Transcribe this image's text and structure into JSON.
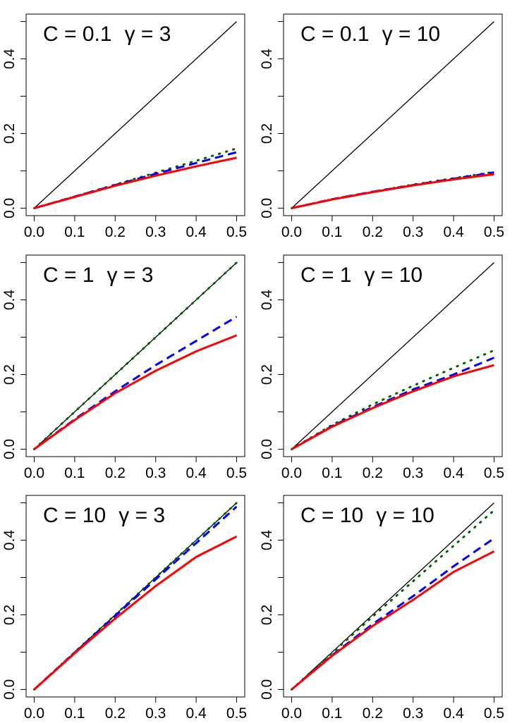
{
  "chart_data": [
    {
      "type": "line",
      "title": "C = 0.1  γ = 3",
      "title_parts": {
        "c_label": "C = 0.1",
        "gamma_label": "γ = 3"
      },
      "xlim": [
        0,
        0.5
      ],
      "ylim": [
        0,
        0.5
      ],
      "x_ticks": [
        "0.0",
        "0.1",
        "0.2",
        "0.3",
        "0.4",
        "0.5"
      ],
      "y_ticks": [
        "0.0",
        "0.2",
        "0.4"
      ],
      "series": [
        {
          "style": "solid-thin",
          "color": "#000000",
          "x": [
            0,
            0.5
          ],
          "y": [
            0,
            0.5
          ]
        },
        {
          "style": "dotted",
          "color": "#006400",
          "x": [
            0,
            0.1,
            0.2,
            0.3,
            0.4,
            0.5
          ],
          "y": [
            0,
            0.031,
            0.063,
            0.095,
            0.127,
            0.16
          ]
        },
        {
          "style": "dashed",
          "color": "#0000ff",
          "x": [
            0,
            0.1,
            0.2,
            0.3,
            0.4,
            0.5
          ],
          "y": [
            0,
            0.031,
            0.062,
            0.092,
            0.121,
            0.15
          ]
        },
        {
          "style": "solid",
          "color": "#ff0000",
          "x": [
            0,
            0.1,
            0.2,
            0.3,
            0.4,
            0.5
          ],
          "y": [
            0,
            0.03,
            0.06,
            0.087,
            0.112,
            0.135
          ]
        }
      ]
    },
    {
      "type": "line",
      "title": "C = 0.1  γ = 10",
      "title_parts": {
        "c_label": "C = 0.1",
        "gamma_label": "γ = 10"
      },
      "xlim": [
        0,
        0.5
      ],
      "ylim": [
        0,
        0.5
      ],
      "x_ticks": [
        "0.0",
        "0.1",
        "0.2",
        "0.3",
        "0.4",
        "0.5"
      ],
      "y_ticks": [
        "0.0",
        "0.2",
        "0.4"
      ],
      "series": [
        {
          "style": "solid-thin",
          "color": "#000000",
          "x": [
            0,
            0.5
          ],
          "y": [
            0,
            0.5
          ]
        },
        {
          "style": "dotted",
          "color": "#006400",
          "x": [
            0,
            0.1,
            0.2,
            0.3,
            0.4,
            0.5
          ],
          "y": [
            0,
            0.024,
            0.044,
            0.063,
            0.08,
            0.097
          ]
        },
        {
          "style": "dashed",
          "color": "#0000ff",
          "x": [
            0,
            0.1,
            0.2,
            0.3,
            0.4,
            0.5
          ],
          "y": [
            0,
            0.024,
            0.044,
            0.062,
            0.079,
            0.096
          ]
        },
        {
          "style": "solid",
          "color": "#ff0000",
          "x": [
            0,
            0.1,
            0.2,
            0.3,
            0.4,
            0.5
          ],
          "y": [
            0,
            0.023,
            0.043,
            0.061,
            0.077,
            0.091
          ]
        }
      ]
    },
    {
      "type": "line",
      "title": "C = 1  γ = 3",
      "title_parts": {
        "c_label": "C = 1",
        "gamma_label": "γ = 3"
      },
      "xlim": [
        0,
        0.5
      ],
      "ylim": [
        0,
        0.5
      ],
      "x_ticks": [
        "0.0",
        "0.1",
        "0.2",
        "0.3",
        "0.4",
        "0.5"
      ],
      "y_ticks": [
        "0.0",
        "0.2",
        "0.4"
      ],
      "series": [
        {
          "style": "solid-thin",
          "color": "#000000",
          "x": [
            0,
            0.5
          ],
          "y": [
            0,
            0.5
          ]
        },
        {
          "style": "dotted",
          "color": "#006400",
          "x": [
            0,
            0.1,
            0.2,
            0.3,
            0.4,
            0.5
          ],
          "y": [
            0,
            0.1,
            0.2,
            0.3,
            0.4,
            0.5
          ]
        },
        {
          "style": "dashed",
          "color": "#0000ff",
          "x": [
            0,
            0.1,
            0.2,
            0.3,
            0.4,
            0.5
          ],
          "y": [
            0,
            0.08,
            0.155,
            0.225,
            0.29,
            0.355
          ]
        },
        {
          "style": "solid",
          "color": "#ff0000",
          "x": [
            0,
            0.1,
            0.2,
            0.3,
            0.4,
            0.5
          ],
          "y": [
            0,
            0.078,
            0.15,
            0.21,
            0.262,
            0.305
          ]
        }
      ]
    },
    {
      "type": "line",
      "title": "C = 1  γ = 10",
      "title_parts": {
        "c_label": "C = 1",
        "gamma_label": "γ = 10"
      },
      "xlim": [
        0,
        0.5
      ],
      "ylim": [
        0,
        0.5
      ],
      "x_ticks": [
        "0.0",
        "0.1",
        "0.2",
        "0.3",
        "0.4",
        "0.5"
      ],
      "y_ticks": [
        "0.0",
        "0.2",
        "0.4"
      ],
      "series": [
        {
          "style": "solid-thin",
          "color": "#000000",
          "x": [
            0,
            0.5
          ],
          "y": [
            0,
            0.5
          ]
        },
        {
          "style": "dotted",
          "color": "#006400",
          "x": [
            0,
            0.1,
            0.2,
            0.3,
            0.4,
            0.5
          ],
          "y": [
            0,
            0.065,
            0.12,
            0.17,
            0.218,
            0.265
          ]
        },
        {
          "style": "dashed",
          "color": "#0000ff",
          "x": [
            0,
            0.1,
            0.2,
            0.3,
            0.4,
            0.5
          ],
          "y": [
            0,
            0.062,
            0.113,
            0.16,
            0.2,
            0.245
          ]
        },
        {
          "style": "solid",
          "color": "#ff0000",
          "x": [
            0,
            0.1,
            0.2,
            0.3,
            0.4,
            0.5
          ],
          "y": [
            0,
            0.06,
            0.11,
            0.155,
            0.195,
            0.225
          ]
        }
      ]
    },
    {
      "type": "line",
      "title": "C = 10  γ = 3",
      "title_parts": {
        "c_label": "C = 10",
        "gamma_label": "γ = 3"
      },
      "xlim": [
        0,
        0.5
      ],
      "ylim": [
        0,
        0.5
      ],
      "x_ticks": [
        "0.0",
        "0.1",
        "0.2",
        "0.3",
        "0.4",
        "0.5"
      ],
      "y_ticks": [
        "0.0",
        "0.2",
        "0.4"
      ],
      "series": [
        {
          "style": "solid-thin",
          "color": "#000000",
          "x": [
            0,
            0.5
          ],
          "y": [
            0,
            0.5
          ]
        },
        {
          "style": "dotted",
          "color": "#006400",
          "x": [
            0,
            0.1,
            0.2,
            0.3,
            0.4,
            0.5
          ],
          "y": [
            0,
            0.1,
            0.2,
            0.3,
            0.4,
            0.5
          ]
        },
        {
          "style": "dashed",
          "color": "#0000ff",
          "x": [
            0,
            0.1,
            0.2,
            0.3,
            0.4,
            0.5
          ],
          "y": [
            0,
            0.099,
            0.197,
            0.295,
            0.392,
            0.49
          ]
        },
        {
          "style": "solid",
          "color": "#ff0000",
          "x": [
            0,
            0.1,
            0.2,
            0.3,
            0.4,
            0.5
          ],
          "y": [
            0,
            0.097,
            0.19,
            0.277,
            0.355,
            0.41
          ]
        }
      ]
    },
    {
      "type": "line",
      "title": "C = 10  γ = 10",
      "title_parts": {
        "c_label": "C = 10",
        "gamma_label": "γ = 10"
      },
      "xlim": [
        0,
        0.5
      ],
      "ylim": [
        0,
        0.5
      ],
      "x_ticks": [
        "0.0",
        "0.1",
        "0.2",
        "0.3",
        "0.4",
        "0.5"
      ],
      "y_ticks": [
        "0.0",
        "0.2",
        "0.4"
      ],
      "series": [
        {
          "style": "solid-thin",
          "color": "#000000",
          "x": [
            0,
            0.5
          ],
          "y": [
            0,
            0.5
          ]
        },
        {
          "style": "dotted",
          "color": "#006400",
          "x": [
            0,
            0.1,
            0.2,
            0.3,
            0.4,
            0.5
          ],
          "y": [
            0,
            0.098,
            0.195,
            0.29,
            0.385,
            0.48
          ]
        },
        {
          "style": "dashed",
          "color": "#0000ff",
          "x": [
            0,
            0.1,
            0.2,
            0.3,
            0.4,
            0.5
          ],
          "y": [
            0,
            0.092,
            0.175,
            0.25,
            0.33,
            0.405
          ]
        },
        {
          "style": "solid",
          "color": "#ff0000",
          "x": [
            0,
            0.1,
            0.2,
            0.3,
            0.4,
            0.5
          ],
          "y": [
            0,
            0.09,
            0.17,
            0.24,
            0.315,
            0.37
          ]
        }
      ]
    }
  ]
}
